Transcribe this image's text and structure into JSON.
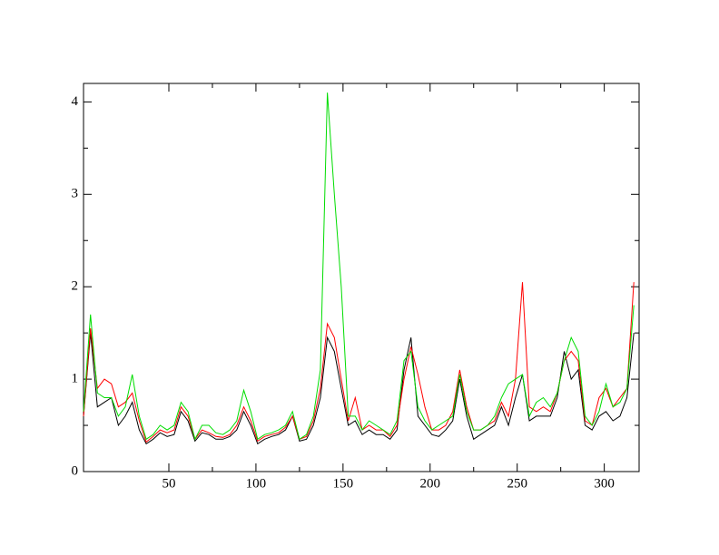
{
  "chart_data": {
    "type": "line",
    "x": [
      1,
      5,
      9,
      13,
      17,
      21,
      25,
      29,
      33,
      37,
      41,
      45,
      49,
      53,
      57,
      61,
      65,
      69,
      73,
      77,
      81,
      85,
      89,
      93,
      97,
      101,
      105,
      109,
      113,
      117,
      121,
      125,
      129,
      133,
      137,
      141,
      145,
      149,
      153,
      157,
      161,
      165,
      169,
      173,
      177,
      181,
      185,
      189,
      193,
      197,
      201,
      205,
      209,
      213,
      217,
      221,
      225,
      229,
      233,
      237,
      241,
      245,
      249,
      253,
      257,
      261,
      265,
      269,
      273,
      277,
      281,
      285,
      289,
      293,
      297,
      301,
      305,
      309,
      313,
      317
    ],
    "series": [
      {
        "color": "#000000",
        "values": [
          0.6,
          1.5,
          0.7,
          0.75,
          0.8,
          0.5,
          0.6,
          0.75,
          0.45,
          0.3,
          0.35,
          0.42,
          0.38,
          0.4,
          0.65,
          0.55,
          0.33,
          0.42,
          0.4,
          0.35,
          0.35,
          0.38,
          0.45,
          0.65,
          0.5,
          0.3,
          0.35,
          0.38,
          0.4,
          0.45,
          0.6,
          0.33,
          0.35,
          0.5,
          0.8,
          1.45,
          1.3,
          0.9,
          0.5,
          0.55,
          0.4,
          0.45,
          0.4,
          0.4,
          0.35,
          0.45,
          1.1,
          1.45,
          0.6,
          0.5,
          0.4,
          0.38,
          0.45,
          0.55,
          1.0,
          0.6,
          0.35,
          0.4,
          0.45,
          0.5,
          0.7,
          0.5,
          0.8,
          1.05,
          0.55,
          0.6,
          0.6,
          0.6,
          0.8,
          1.3,
          1.0,
          1.1,
          0.5,
          0.45,
          0.6,
          0.65,
          0.55,
          0.6,
          0.8,
          1.5
        ]
      },
      {
        "color": "#ff0000",
        "values": [
          0.6,
          1.55,
          0.9,
          1.0,
          0.95,
          0.7,
          0.75,
          0.85,
          0.55,
          0.32,
          0.38,
          0.45,
          0.42,
          0.45,
          0.7,
          0.6,
          0.35,
          0.45,
          0.42,
          0.38,
          0.37,
          0.4,
          0.5,
          0.7,
          0.55,
          0.33,
          0.38,
          0.4,
          0.42,
          0.48,
          0.6,
          0.35,
          0.38,
          0.55,
          0.9,
          1.6,
          1.45,
          1.0,
          0.55,
          0.8,
          0.45,
          0.5,
          0.45,
          0.45,
          0.38,
          0.5,
          1.0,
          1.35,
          1.05,
          0.7,
          0.45,
          0.45,
          0.5,
          0.65,
          1.1,
          0.7,
          0.45,
          0.45,
          0.5,
          0.55,
          0.75,
          0.6,
          1.0,
          2.05,
          0.7,
          0.65,
          0.7,
          0.65,
          0.85,
          1.2,
          1.3,
          1.2,
          0.55,
          0.5,
          0.8,
          0.9,
          0.7,
          0.8,
          0.9,
          2.05
        ]
      },
      {
        "color": "#00dd00",
        "values": [
          0.65,
          1.7,
          0.85,
          0.8,
          0.8,
          0.6,
          0.7,
          1.05,
          0.6,
          0.35,
          0.4,
          0.5,
          0.45,
          0.5,
          0.75,
          0.65,
          0.35,
          0.5,
          0.5,
          0.42,
          0.4,
          0.45,
          0.55,
          0.88,
          0.65,
          0.35,
          0.4,
          0.42,
          0.45,
          0.5,
          0.65,
          0.35,
          0.4,
          0.6,
          1.1,
          4.1,
          3.0,
          2.0,
          0.6,
          0.6,
          0.45,
          0.55,
          0.5,
          0.45,
          0.4,
          0.55,
          1.2,
          1.3,
          0.7,
          0.55,
          0.45,
          0.5,
          0.55,
          0.6,
          1.05,
          0.65,
          0.45,
          0.45,
          0.5,
          0.6,
          0.8,
          0.95,
          1.0,
          1.05,
          0.6,
          0.75,
          0.8,
          0.7,
          0.85,
          1.2,
          1.45,
          1.3,
          0.6,
          0.5,
          0.65,
          0.95,
          0.7,
          0.75,
          0.9,
          1.8
        ]
      }
    ],
    "xlim": [
      1,
      320
    ],
    "ylim": [
      0,
      4.2
    ],
    "xticks": [
      50,
      100,
      150,
      200,
      250,
      300
    ],
    "yticks": [
      0,
      1,
      2,
      3,
      4
    ]
  }
}
